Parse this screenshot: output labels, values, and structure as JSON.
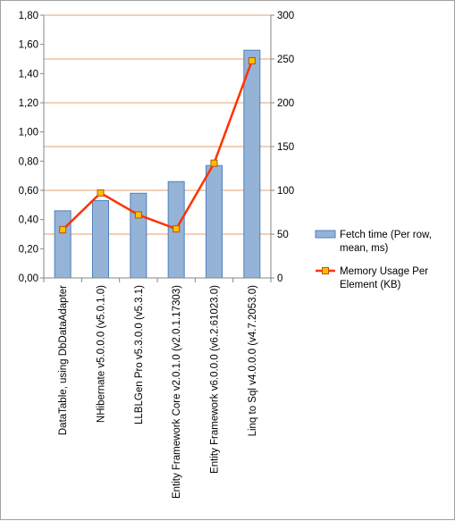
{
  "chart_data": {
    "type": "bar",
    "categories": [
      "DataTable, using DbDataAdapter",
      "NHibernate v5.0.0.0 (v5.0.1.0)",
      "LLBLGen Pro v5.3.0.0 (v5.3.1)",
      "Entity Framework Core v2.0.1.0 (v2.0.1.17303)",
      "Entity Framework v6.0.0.0 (v6.2.61023.0)",
      "Linq to Sql v4.0.0.0 (v4.7.2053.0)"
    ],
    "series": [
      {
        "name": "Fetch time (Per row, mean, ms)",
        "type": "bar",
        "axis": "left",
        "color": "#95b3d7",
        "values": [
          0.46,
          0.53,
          0.58,
          0.66,
          0.77,
          1.56
        ]
      },
      {
        "name": "Memory Usage Per Element (KB)",
        "type": "line",
        "axis": "right",
        "color": "#ff3300",
        "marker_color": "#ffc000",
        "values": [
          55,
          97,
          72,
          56,
          131,
          248
        ]
      }
    ],
    "left_axis": {
      "ylim": [
        0,
        1.8
      ],
      "ticks": [
        "0,00",
        "0,20",
        "0,40",
        "0,60",
        "0,80",
        "1,00",
        "1,20",
        "1,40",
        "1,60",
        "1,80"
      ]
    },
    "right_axis": {
      "ylim": [
        0,
        300
      ],
      "ticks": [
        "0",
        "50",
        "100",
        "150",
        "200",
        "250",
        "300"
      ]
    },
    "legend": {
      "placement": "right",
      "entries": [
        {
          "lines": [
            "Fetch time (Per row,",
            "mean, ms)"
          ],
          "kind": "bar"
        },
        {
          "lines": [
            "Memory Usage Per",
            "Element (KB)"
          ],
          "kind": "line"
        }
      ]
    },
    "grid": true,
    "grid_color": "#e0a070"
  }
}
